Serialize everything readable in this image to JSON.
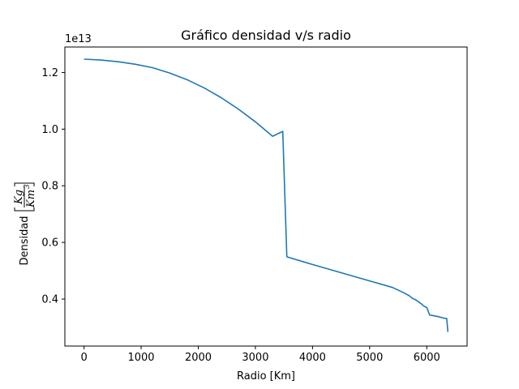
{
  "chart_data": {
    "type": "line",
    "title": "Gráfico densidad v/s radio",
    "xlabel": "Radio [Km]",
    "ylabel_text": "Densidad",
    "ylabel_unit_num": "Kg",
    "ylabel_unit_den": "Km",
    "ylabel_unit_den_exp": "3",
    "offset_text": "1e13",
    "xlim": [
      -335,
      6706
    ],
    "ylim": [
      2.34,
      12.9
    ],
    "xticks": [
      0,
      1000,
      2000,
      3000,
      4000,
      5000,
      6000
    ],
    "xtick_labels": [
      "0",
      "1000",
      "2000",
      "3000",
      "4000",
      "5000",
      "6000"
    ],
    "yticks": [
      4,
      6,
      8,
      10,
      12
    ],
    "ytick_labels": [
      "0.4",
      "0.6",
      "0.8",
      "1.0",
      "1.2"
    ],
    "grid": false,
    "series": [
      {
        "color": "#1f77b4",
        "x": [
          0,
          300,
          600,
          900,
          1200,
          1500,
          1800,
          2100,
          2400,
          2700,
          3000,
          3300,
          3480,
          3550,
          4000,
          4500,
          5000,
          5400,
          5600,
          5700,
          5750,
          5800,
          5900,
          5950,
          6000,
          6050,
          6100,
          6200,
          6290,
          6350,
          6370
        ],
        "y": [
          12.47,
          12.44,
          12.38,
          12.29,
          12.17,
          11.98,
          11.75,
          11.46,
          11.11,
          10.71,
          10.26,
          9.75,
          9.92,
          5.49,
          5.22,
          4.93,
          4.64,
          4.41,
          4.22,
          4.11,
          4.02,
          3.98,
          3.84,
          3.75,
          3.7,
          3.44,
          3.42,
          3.38,
          3.33,
          3.31,
          2.84
        ]
      }
    ]
  }
}
